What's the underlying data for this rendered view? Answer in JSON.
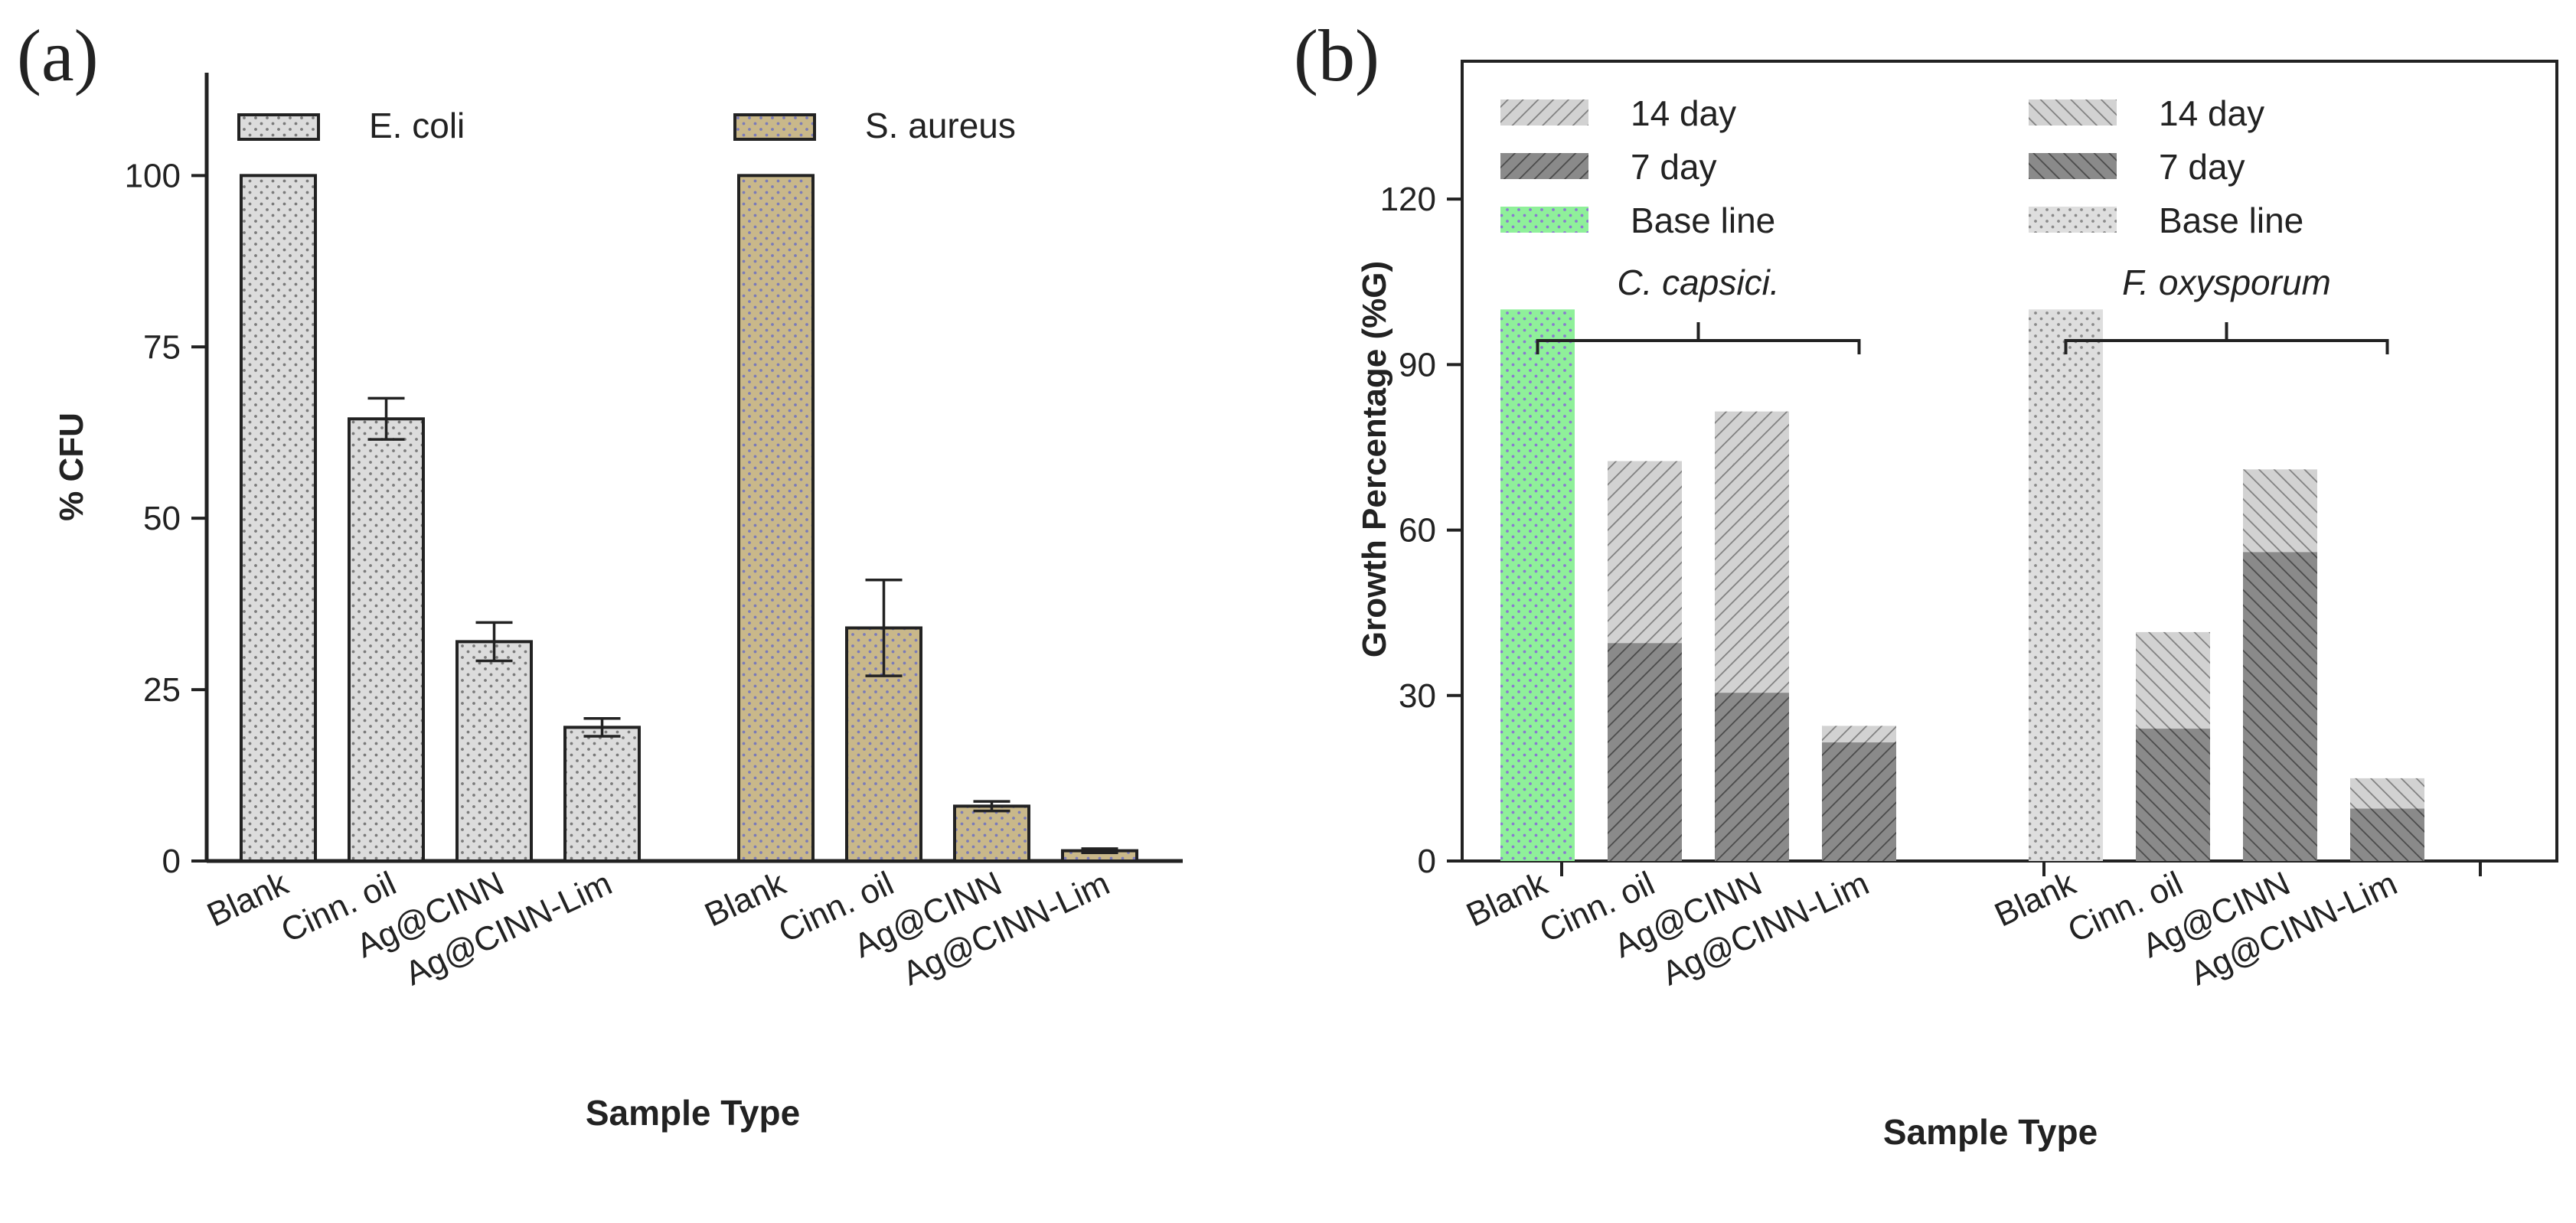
{
  "chart_data": [
    {
      "type": "bar",
      "panel_label": "(a)",
      "ylabel": "% CFU",
      "xlabel": "Sample Type",
      "ylim": [
        0,
        115
      ],
      "yticks": [
        "0",
        "25",
        "50",
        "75",
        "100"
      ],
      "legend_placement": "top",
      "groups": [
        {
          "name": "E. coli",
          "color": "#dcdcdc",
          "categories": [
            "Blank",
            "Cinn. oil",
            "Ag@CINN",
            "Ag@CINN-Lim"
          ],
          "values": [
            100,
            64.5,
            32,
            19.5
          ],
          "errors": [
            0,
            3,
            2.8,
            1.3
          ]
        },
        {
          "name": "S. aureus",
          "color": "#c9b88a",
          "categories": [
            "Blank",
            "Cinn. oil",
            "Ag@CINN",
            "Ag@CINN-Lim"
          ],
          "values": [
            100,
            34,
            8,
            1.5
          ],
          "errors": [
            0,
            7,
            0.7,
            0.3
          ]
        }
      ]
    },
    {
      "type": "bar",
      "panel_label": "(b)",
      "ylabel": "Growth Percentage (%G)",
      "xlabel": "Sample Type",
      "ylim": [
        0,
        145
      ],
      "yticks": [
        "0",
        "30",
        "60",
        "90",
        "120"
      ],
      "legend_placement": "top",
      "legend_left": [
        "14 day",
        "7 day",
        "Base line"
      ],
      "legend_right": [
        "14 day",
        "7 day",
        "Base line"
      ],
      "groups": [
        {
          "name": "C.  capsici.",
          "baseline_color": "#8ff09a",
          "categories": [
            "Blank",
            "Cinn. oil",
            "Ag@CINN",
            "Ag@CINN-Lim"
          ],
          "day14": [
            100,
            72.5,
            81.5,
            24.5
          ],
          "day7": [
            100,
            39.5,
            30.5,
            21.5
          ]
        },
        {
          "name": "F. oxysporum",
          "baseline_color": "#dcdcdc",
          "categories": [
            "Blank",
            "Cinn. oil",
            "Ag@CINN",
            "Ag@CINN-Lim"
          ],
          "day14": [
            100,
            41.5,
            71,
            15
          ],
          "day7": [
            100,
            24,
            56,
            9.5
          ]
        }
      ]
    }
  ]
}
